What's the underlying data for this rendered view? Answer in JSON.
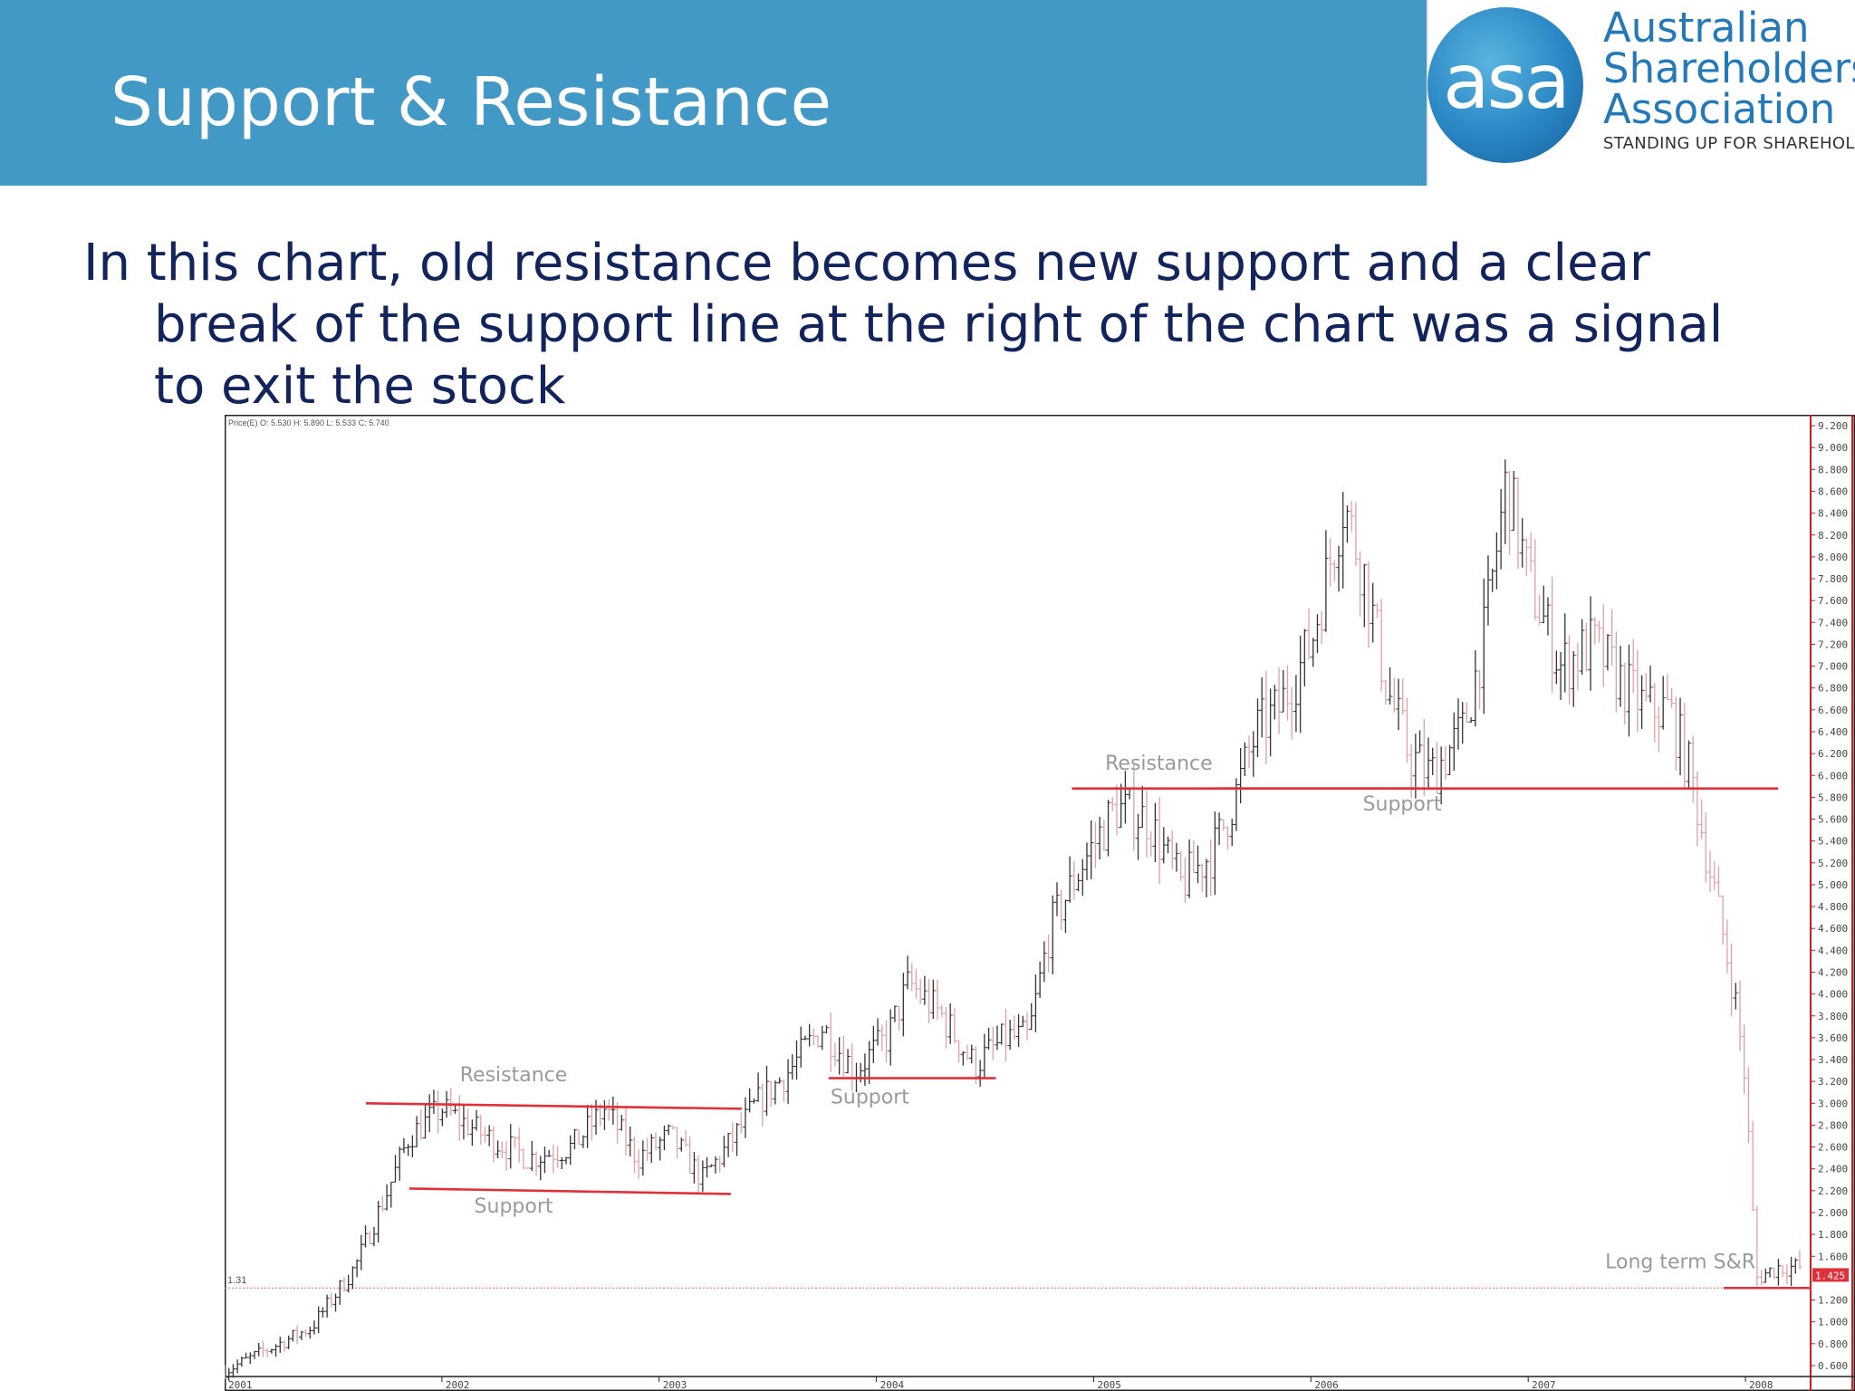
{
  "slide": {
    "title": "Support & Resistance",
    "body_lines": [
      "In this chart, old resistance becomes new support and a clear",
      "break of the support line at the right of the chart was a signal",
      "to exit the stock"
    ]
  },
  "logo": {
    "mark": "asa",
    "name_lines": [
      "Australian",
      "Shareholders'",
      "Association"
    ],
    "tagline": "STANDING UP FOR SHAREHOLDERS"
  },
  "colors": {
    "banner": "#4399c6",
    "title_text": "#ffffff",
    "body_text": "#13245c",
    "logo_blue": "#2479b8",
    "up_bar": "#333333",
    "down_bar": "#e0a0a6",
    "line": "#e0303a",
    "annotation_text": "#9a9a9a"
  },
  "chart_data": {
    "type": "line",
    "style": "ohlc-bars",
    "header": "Price(E) O: 5.530 H: 5.890 L: 5.533 C: 5.740",
    "xlim": [
      2001.0,
      2008.3
    ],
    "ylim": [
      0.5,
      9.3
    ],
    "x_ticks": [
      2001,
      2002,
      2003,
      2004,
      2005,
      2006,
      2007,
      2008
    ],
    "y_ticks": [
      "9.200",
      "9.000",
      "8.800",
      "8.600",
      "8.400",
      "8.200",
      "8.000",
      "7.800",
      "7.600",
      "7.400",
      "7.200",
      "7.000",
      "6.800",
      "6.600",
      "6.400",
      "6.200",
      "6.000",
      "5.800",
      "5.600",
      "5.400",
      "5.200",
      "5.000",
      "4.800",
      "4.600",
      "4.400",
      "4.200",
      "4.000",
      "3.800",
      "3.600",
      "3.400",
      "3.200",
      "3.000",
      "2.800",
      "2.600",
      "2.400",
      "2.200",
      "2.000",
      "1.800",
      "1.600",
      "1.200",
      "1.000",
      "0.800",
      "0.600"
    ],
    "last_value_label": "1.425",
    "price_path": [
      [
        2001.0,
        0.55
      ],
      [
        2001.2,
        0.75
      ],
      [
        2001.4,
        0.95
      ],
      [
        2001.6,
        1.5
      ],
      [
        2001.75,
        2.2
      ],
      [
        2001.85,
        2.7
      ],
      [
        2002.0,
        2.95
      ],
      [
        2002.2,
        2.7
      ],
      [
        2002.4,
        2.5
      ],
      [
        2002.6,
        2.6
      ],
      [
        2002.75,
        2.95
      ],
      [
        2002.9,
        2.5
      ],
      [
        2003.05,
        2.7
      ],
      [
        2003.2,
        2.3
      ],
      [
        2003.35,
        2.7
      ],
      [
        2003.45,
        3.0
      ],
      [
        2003.6,
        3.3
      ],
      [
        2003.75,
        3.7
      ],
      [
        2003.9,
        3.3
      ],
      [
        2004.05,
        3.6
      ],
      [
        2004.15,
        4.1
      ],
      [
        2004.3,
        3.8
      ],
      [
        2004.45,
        3.35
      ],
      [
        2004.6,
        3.6
      ],
      [
        2004.7,
        3.6
      ],
      [
        2004.8,
        4.6
      ],
      [
        2004.95,
        5.2
      ],
      [
        2005.1,
        5.7
      ],
      [
        2005.25,
        5.6
      ],
      [
        2005.4,
        5.0
      ],
      [
        2005.55,
        5.3
      ],
      [
        2005.65,
        5.8
      ],
      [
        2005.75,
        6.4
      ],
      [
        2005.85,
        6.6
      ],
      [
        2006.0,
        7.2
      ],
      [
        2006.15,
        8.5
      ],
      [
        2006.25,
        7.8
      ],
      [
        2006.35,
        6.8
      ],
      [
        2006.45,
        6.2
      ],
      [
        2006.55,
        6.0
      ],
      [
        2006.7,
        6.4
      ],
      [
        2006.8,
        7.3
      ],
      [
        2006.9,
        8.7
      ],
      [
        2007.0,
        7.8
      ],
      [
        2007.15,
        7.0
      ],
      [
        2007.3,
        7.2
      ],
      [
        2007.45,
        6.8
      ],
      [
        2007.55,
        6.6
      ],
      [
        2007.65,
        6.6
      ],
      [
        2007.75,
        6.0
      ],
      [
        2007.85,
        5.0
      ],
      [
        2007.95,
        4.0
      ],
      [
        2008.0,
        3.2
      ],
      [
        2008.05,
        1.4
      ],
      [
        2008.15,
        1.5
      ],
      [
        2008.25,
        1.5
      ]
    ],
    "levels": [
      {
        "label": "Resistance",
        "x": [
          2001.65,
          2003.38
        ],
        "y": [
          3.0,
          2.95
        ]
      },
      {
        "label": "Support",
        "x": [
          2001.85,
          2003.33
        ],
        "y": [
          2.22,
          2.17
        ]
      },
      {
        "label": "Support",
        "x": [
          2003.78,
          2004.55
        ],
        "y": [
          3.23,
          3.23
        ]
      },
      {
        "label": "Resistance",
        "x": [
          2004.9,
          2006.5
        ],
        "y": [
          5.88,
          5.88
        ]
      },
      {
        "label": "Support",
        "x": [
          2005.55,
          2008.15
        ],
        "y": [
          5.88,
          5.88
        ]
      },
      {
        "label": "Long term S&R",
        "x": [
          2007.9,
          2008.3
        ],
        "y": [
          1.31,
          1.31
        ]
      }
    ],
    "level_labels": [
      {
        "text": "Resistance",
        "x": 2002.33,
        "y": 3.2
      },
      {
        "text": "Support",
        "x": 2002.33,
        "y": 2.0
      },
      {
        "text": "Support",
        "x": 2003.97,
        "y": 3.0
      },
      {
        "text": "Resistance",
        "x": 2005.3,
        "y": 6.05
      },
      {
        "text": "Support",
        "x": 2006.42,
        "y": 5.68
      },
      {
        "text": "Long term S&R",
        "x": 2007.7,
        "y": 1.49
      }
    ],
    "long_term_line": {
      "label": "1.31",
      "y": 1.31
    }
  }
}
